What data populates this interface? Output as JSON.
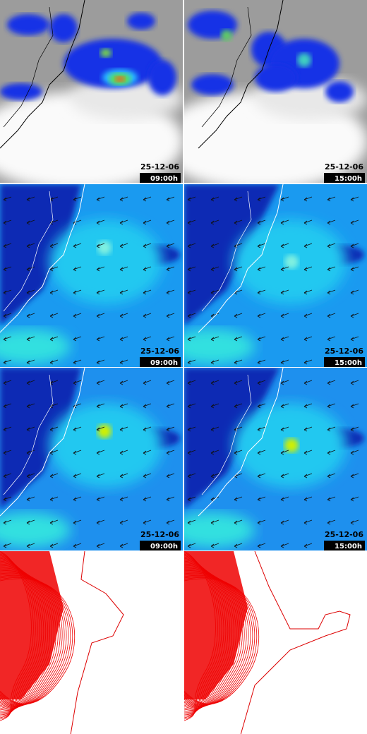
{
  "panels": [
    {
      "date": "25-12-06",
      "time": "09:00h"
    },
    {
      "date": "25-12-06",
      "time": "15:00h"
    },
    {
      "date": "25-12-06",
      "time": "09:00h"
    },
    {
      "date": "25-12-06",
      "time": "15:00h"
    },
    {
      "date": "25-12-06",
      "time": "09:00h"
    },
    {
      "date": "25-12-06",
      "time": "15:00h"
    }
  ]
}
